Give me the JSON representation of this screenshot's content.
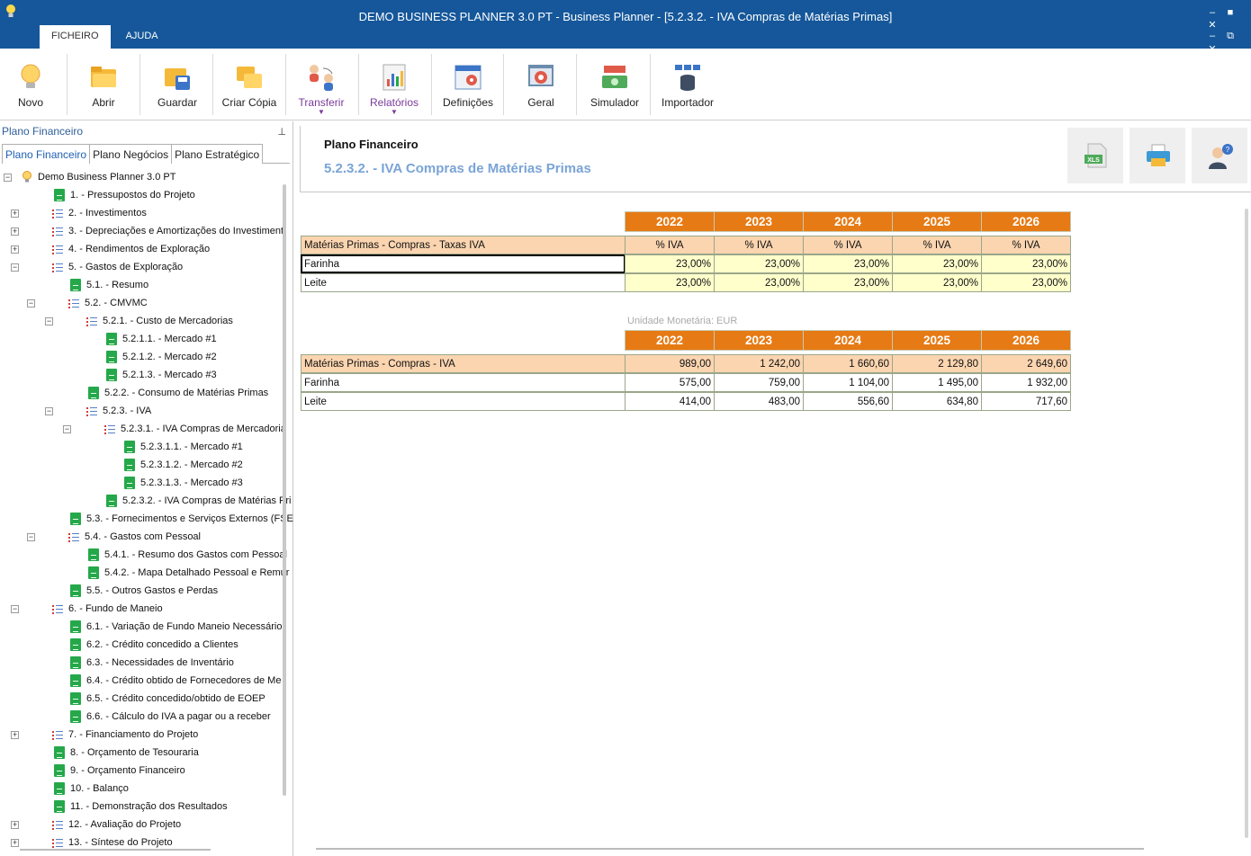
{
  "window": {
    "title": "DEMO BUSINESS PLANNER 3.0 PT - Business Planner - [5.2.3.2. - IVA Compras de Matérias Primas]",
    "controls": [
      "‒",
      "■",
      "✕"
    ],
    "controls2": [
      "‒",
      "⧉",
      "✕"
    ]
  },
  "menu_tabs": [
    "FICHEIRO",
    "AJUDA"
  ],
  "ribbon": [
    {
      "label": "Novo",
      "icon": "lightbulb-icon"
    },
    {
      "label": "Abrir",
      "icon": "folder-open-icon"
    },
    {
      "label": "Guardar",
      "icon": "save-icon"
    },
    {
      "label": "Criar Cópia",
      "icon": "copy-folder-icon"
    },
    {
      "label": "Transferir",
      "icon": "transfer-users-icon",
      "dropdown": true
    },
    {
      "label": "Relatórios",
      "icon": "reports-chart-icon",
      "dropdown": true
    },
    {
      "label": "Definições",
      "icon": "settings-calendar-icon"
    },
    {
      "label": "Geral",
      "icon": "general-gear-icon"
    },
    {
      "label": "Simulador",
      "icon": "simulator-money-icon"
    },
    {
      "label": "Importador",
      "icon": "importer-database-icon"
    }
  ],
  "left_panel": {
    "header": "Plano Financeiro",
    "pin": "⊥",
    "tabs": [
      "Plano Financeiro",
      "Plano Negócios",
      "Plano Estratégico"
    ],
    "tree": [
      {
        "label": "Demo Business Planner 3.0 PT",
        "level": 0,
        "type": "root",
        "exp": "−"
      },
      {
        "label": "1. - Pressupostos do Projeto",
        "level": 1,
        "type": "sheet"
      },
      {
        "label": "2. - Investimentos",
        "level": 1,
        "type": "list",
        "exp": "+"
      },
      {
        "label": "3. - Depreciações e Amortizações do Investiment",
        "level": 1,
        "type": "list",
        "exp": "+"
      },
      {
        "label": "4. - Rendimentos de Exploração",
        "level": 1,
        "type": "list",
        "exp": "+"
      },
      {
        "label": "5. - Gastos de Exploração",
        "level": 1,
        "type": "list",
        "exp": "−"
      },
      {
        "label": "5.1. - Resumo",
        "level": 2,
        "type": "sheet"
      },
      {
        "label": "5.2. - CMVMC",
        "level": 2,
        "type": "list",
        "exp": "−"
      },
      {
        "label": "5.2.1. - Custo de Mercadorias",
        "level": 3,
        "type": "list",
        "exp": "−"
      },
      {
        "label": "5.2.1.1. - Mercado #1",
        "level": 4,
        "type": "sheet"
      },
      {
        "label": "5.2.1.2. - Mercado #2",
        "level": 4,
        "type": "sheet"
      },
      {
        "label": "5.2.1.3. - Mercado #3",
        "level": 4,
        "type": "sheet"
      },
      {
        "label": "5.2.2. - Consumo de Matérias Primas",
        "level": 3,
        "type": "sheet"
      },
      {
        "label": "5.2.3. - IVA",
        "level": 3,
        "type": "list",
        "exp": "−"
      },
      {
        "label": "5.2.3.1. - IVA Compras de Mercadoria",
        "level": 4,
        "type": "list",
        "exp": "−"
      },
      {
        "label": "5.2.3.1.1. - Mercado #1",
        "level": 5,
        "type": "sheet"
      },
      {
        "label": "5.2.3.1.2. - Mercado #2",
        "level": 5,
        "type": "sheet"
      },
      {
        "label": "5.2.3.1.3. - Mercado #3",
        "level": 5,
        "type": "sheet"
      },
      {
        "label": "5.2.3.2. - IVA Compras de Matérias Pri",
        "level": 4,
        "type": "sheet"
      },
      {
        "label": "5.3. - Fornecimentos e Serviços Externos (FSE",
        "level": 2,
        "type": "sheet"
      },
      {
        "label": "5.4. - Gastos com Pessoal",
        "level": 2,
        "type": "list",
        "exp": "−"
      },
      {
        "label": "5.4.1. - Resumo dos Gastos com Pessoal",
        "level": 3,
        "type": "sheet"
      },
      {
        "label": "5.4.2. - Mapa Detalhado Pessoal e Remur",
        "level": 3,
        "type": "sheet"
      },
      {
        "label": "5.5. - Outros Gastos e Perdas",
        "level": 2,
        "type": "sheet"
      },
      {
        "label": "6. - Fundo de Maneio",
        "level": 1,
        "type": "list",
        "exp": "−"
      },
      {
        "label": "6.1. - Variação de Fundo Maneio Necessário",
        "level": 2,
        "type": "sheet"
      },
      {
        "label": "6.2. - Crédito concedido a Clientes",
        "level": 2,
        "type": "sheet"
      },
      {
        "label": "6.3. - Necessidades de Inventário",
        "level": 2,
        "type": "sheet"
      },
      {
        "label": "6.4. - Crédito obtido de Fornecedores de Me",
        "level": 2,
        "type": "sheet"
      },
      {
        "label": "6.5. - Crédito concedido/obtido de EOEP",
        "level": 2,
        "type": "sheet"
      },
      {
        "label": "6.6. - Cálculo do IVA a pagar ou a receber",
        "level": 2,
        "type": "sheet"
      },
      {
        "label": "7. - Financiamento do Projeto",
        "level": 1,
        "type": "list",
        "exp": "+"
      },
      {
        "label": "8. - Orçamento de Tesouraria",
        "level": 1,
        "type": "sheet"
      },
      {
        "label": "9. - Orçamento Financeiro",
        "level": 1,
        "type": "sheet"
      },
      {
        "label": "10. - Balanço",
        "level": 1,
        "type": "sheet"
      },
      {
        "label": "11. - Demonstração dos Resultados",
        "level": 1,
        "type": "sheet"
      },
      {
        "label": "12. - Avaliação do Projeto",
        "level": 1,
        "type": "list",
        "exp": "+"
      },
      {
        "label": "13. - Síntese do Projeto",
        "level": 1,
        "type": "list",
        "exp": "+"
      }
    ]
  },
  "main": {
    "title": "Plano Financeiro",
    "subtitle": "5.2.3.2. - IVA Compras de Matérias Primas",
    "header_buttons": [
      "excel-export-icon",
      "print-icon",
      "help-user-icon"
    ],
    "excel_label": "XLS",
    "years": [
      "2022",
      "2023",
      "2024",
      "2025",
      "2026"
    ],
    "table1": {
      "header_label": "Matérias Primas - Compras - Taxas IVA",
      "unit": "% IVA",
      "rows": [
        {
          "label": "Farinha",
          "values": [
            "23,00%",
            "23,00%",
            "23,00%",
            "23,00%",
            "23,00%"
          ]
        },
        {
          "label": "Leite",
          "values": [
            "23,00%",
            "23,00%",
            "23,00%",
            "23,00%",
            "23,00%"
          ]
        }
      ]
    },
    "currency_note": "Unidade Monetária: EUR",
    "table2": {
      "header_label": "Matérias Primas - Compras - IVA",
      "totals": [
        "989,00",
        "1 242,00",
        "1 660,60",
        "2 129,80",
        "2 649,60"
      ],
      "rows": [
        {
          "label": "Farinha",
          "values": [
            "575,00",
            "759,00",
            "1 104,00",
            "1 495,00",
            "1 932,00"
          ]
        },
        {
          "label": "Leite",
          "values": [
            "414,00",
            "483,00",
            "556,60",
            "634,80",
            "717,60"
          ]
        }
      ]
    }
  }
}
